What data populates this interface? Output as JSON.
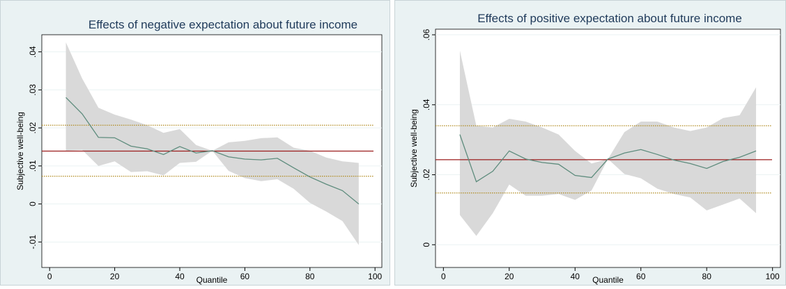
{
  "chart_data": [
    {
      "type": "line",
      "title": "Effects of negative expectation about future income",
      "xlabel": "Quantile",
      "ylabel": "Subjective well-being",
      "x": [
        5,
        10,
        15,
        20,
        25,
        30,
        35,
        40,
        45,
        50,
        55,
        60,
        65,
        70,
        75,
        80,
        85,
        90,
        95
      ],
      "values": [
        0.028,
        0.0237,
        0.0175,
        0.0174,
        0.0152,
        0.0145,
        0.013,
        0.0151,
        0.0134,
        0.014,
        0.0124,
        0.0118,
        0.0116,
        0.012,
        0.0095,
        0.0071,
        0.0052,
        0.0035,
        0.0
      ],
      "ci_upper": [
        0.0425,
        0.033,
        0.0253,
        0.0235,
        0.0222,
        0.0207,
        0.0187,
        0.0197,
        0.0155,
        0.014,
        0.0162,
        0.0166,
        0.0173,
        0.0175,
        0.0148,
        0.014,
        0.0122,
        0.0112,
        0.0108
      ],
      "ci_lower": [
        0.014,
        0.0142,
        0.01,
        0.0112,
        0.0084,
        0.0086,
        0.0075,
        0.0108,
        0.0111,
        0.014,
        0.0087,
        0.0068,
        0.006,
        0.0065,
        0.004,
        0.0003,
        -0.002,
        -0.0045,
        -0.0108
      ],
      "ols": 0.0139,
      "ols_ci": [
        0.0073,
        0.0207
      ],
      "line_color": "#5e8c7d",
      "band_color": "#d9d9d9",
      "ols_color": "#9b1c1c",
      "ols_ci_color": "#b08a1e",
      "xlim": [
        -2.4,
        102.1
      ],
      "xticks": [
        0,
        20,
        40,
        60,
        80,
        100
      ],
      "ylim": [
        -0.0167,
        0.0445
      ],
      "yticks": [
        {
          "value": -0.01,
          "label": "-.01"
        },
        0,
        {
          "value": 0.01,
          "label": ".01"
        },
        {
          "value": 0.02,
          "label": ".02"
        },
        {
          "value": 0.03,
          "label": ".03"
        },
        {
          "value": 0.04,
          "label": ".04"
        }
      ],
      "grid": true
    },
    {
      "type": "line",
      "title": "Effects of positive expectation about future income",
      "xlabel": "Quantile",
      "ylabel": "Subjective well-being",
      "x": [
        5,
        10,
        15,
        20,
        25,
        30,
        35,
        40,
        45,
        50,
        55,
        60,
        65,
        70,
        75,
        80,
        85,
        90,
        95
      ],
      "values": [
        0.0315,
        0.018,
        0.021,
        0.0268,
        0.0245,
        0.0235,
        0.023,
        0.0198,
        0.0192,
        0.0245,
        0.0262,
        0.0272,
        0.0258,
        0.0242,
        0.0232,
        0.0218,
        0.0238,
        0.025,
        0.0268
      ],
      "ci_upper": [
        0.0555,
        0.034,
        0.0335,
        0.036,
        0.0352,
        0.0335,
        0.0315,
        0.0268,
        0.0232,
        0.0245,
        0.0322,
        0.0352,
        0.0352,
        0.0335,
        0.0325,
        0.0335,
        0.0362,
        0.037,
        0.045
      ],
      "ci_lower": [
        0.0085,
        0.0025,
        0.009,
        0.0172,
        0.014,
        0.014,
        0.0145,
        0.0128,
        0.0155,
        0.0245,
        0.0202,
        0.019,
        0.016,
        0.0145,
        0.0135,
        0.0098,
        0.0115,
        0.0132,
        0.009
      ],
      "ols": 0.0243,
      "ols_ci": [
        0.0148,
        0.034
      ],
      "line_color": "#5e8c7d",
      "band_color": "#d9d9d9",
      "ols_color": "#9b1c1c",
      "ols_ci_color": "#b08a1e",
      "xlim": [
        -2.4,
        102.4
      ],
      "xticks": [
        0,
        20,
        40,
        60,
        80,
        100
      ],
      "ylim": [
        -0.0065,
        0.0616
      ],
      "yticks": [
        0,
        {
          "value": 0.02,
          "label": ".02"
        },
        {
          "value": 0.04,
          "label": ".04"
        },
        {
          "value": 0.06,
          "label": ".06"
        }
      ],
      "grid": true
    }
  ]
}
